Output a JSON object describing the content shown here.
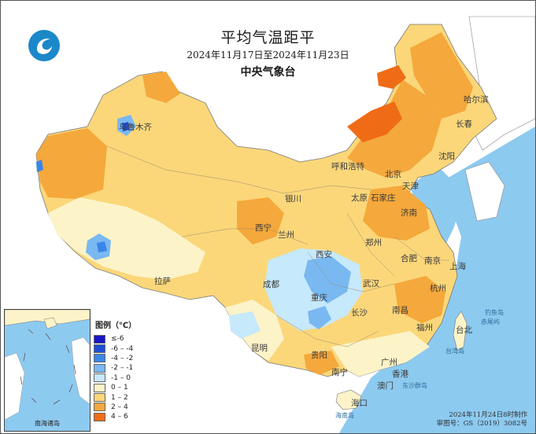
{
  "title": "平均气温距平",
  "date_range": "2024年11月17日至2024年11月23日",
  "issuer": "中央气象台",
  "legend": {
    "title": "图例（℃）",
    "items": [
      {
        "label": "≤-6",
        "color": "#1616c8"
      },
      {
        "label": "-6 – -4",
        "color": "#1f4fd6"
      },
      {
        "label": "-4 – -2",
        "color": "#3a86e8"
      },
      {
        "label": "-2 – -1",
        "color": "#79b8f1"
      },
      {
        "label": "-1 – 0",
        "color": "#c6e9fb"
      },
      {
        "label": "0 – 1",
        "color": "#fdf3c8"
      },
      {
        "label": "1 – 2",
        "color": "#fbd77a"
      },
      {
        "label": "2 – 4",
        "color": "#f5a83b"
      },
      {
        "label": "4 – 6",
        "color": "#f06b16"
      }
    ]
  },
  "cities": [
    "哈尔滨",
    "长春",
    "沈阳",
    "呼和浩特",
    "北京",
    "天津",
    "石家庄",
    "太原",
    "济南",
    "银川",
    "西宁",
    "兰州",
    "郑州",
    "西安",
    "合肥",
    "南京",
    "上海",
    "杭州",
    "武汉",
    "成都",
    "重庆",
    "长沙",
    "南昌",
    "福州",
    "台北",
    "贵阳",
    "昆明",
    "南宁",
    "广州",
    "香港",
    "澳门",
    "海口",
    "拉萨",
    "乌鲁木齐"
  ],
  "sea_labels": [
    "钓鱼岛",
    "赤尾屿",
    "台湾岛",
    "东沙群岛",
    "海南岛"
  ],
  "inset_label": "南海诸岛",
  "footer": {
    "made": "2024年11月24日8时制作",
    "approval": "审图号：GS（2019）3082号"
  },
  "colors": {
    "ocean": "#8dcaf0",
    "land_outside": "#ffffff",
    "border": "#666666"
  }
}
